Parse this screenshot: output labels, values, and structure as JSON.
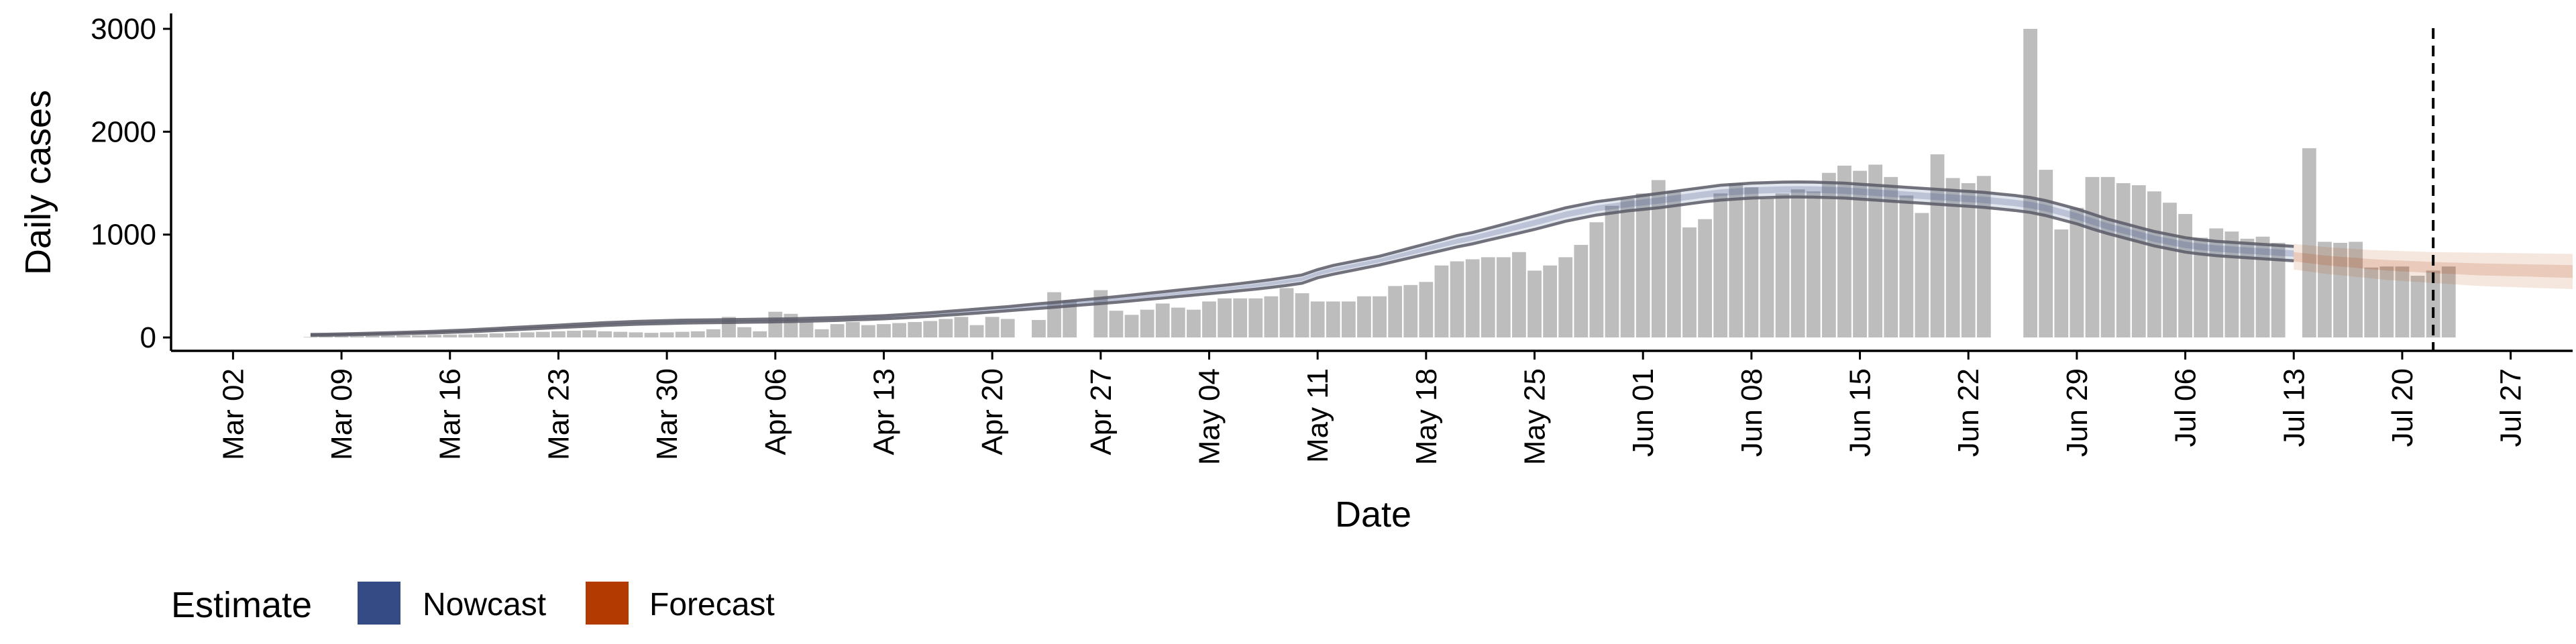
{
  "legend": {
    "title": "Estimate",
    "items": [
      {
        "label": "Nowcast",
        "color": "#354b86"
      },
      {
        "label": "Forecast",
        "color": "#b33a00"
      }
    ]
  },
  "chart_data": {
    "type": "bar",
    "title": "",
    "xlabel": "Date",
    "ylabel": "Daily cases",
    "ylim": [
      -130,
      3150
    ],
    "xlim": [
      "2020-02-27",
      "2020-07-31"
    ],
    "x_start_date": "2020-03-07",
    "y_ticks": [
      0,
      1000,
      2000,
      3000
    ],
    "x_ticks": [
      {
        "date": "2020-03-02",
        "label": "Mar 02"
      },
      {
        "date": "2020-03-09",
        "label": "Mar 09"
      },
      {
        "date": "2020-03-16",
        "label": "Mar 16"
      },
      {
        "date": "2020-03-23",
        "label": "Mar 23"
      },
      {
        "date": "2020-03-30",
        "label": "Mar 30"
      },
      {
        "date": "2020-04-06",
        "label": "Apr 06"
      },
      {
        "date": "2020-04-13",
        "label": "Apr 13"
      },
      {
        "date": "2020-04-20",
        "label": "Apr 20"
      },
      {
        "date": "2020-04-27",
        "label": "Apr 27"
      },
      {
        "date": "2020-05-04",
        "label": "May 04"
      },
      {
        "date": "2020-05-11",
        "label": "May 11"
      },
      {
        "date": "2020-05-18",
        "label": "May 18"
      },
      {
        "date": "2020-05-25",
        "label": "May 25"
      },
      {
        "date": "2020-06-01",
        "label": "Jun 01"
      },
      {
        "date": "2020-06-08",
        "label": "Jun 08"
      },
      {
        "date": "2020-06-15",
        "label": "Jun 15"
      },
      {
        "date": "2020-06-22",
        "label": "Jun 22"
      },
      {
        "date": "2020-06-29",
        "label": "Jun 29"
      },
      {
        "date": "2020-07-06",
        "label": "Jul 06"
      },
      {
        "date": "2020-07-13",
        "label": "Jul 13"
      },
      {
        "date": "2020-07-20",
        "label": "Jul 20"
      },
      {
        "date": "2020-07-27",
        "label": "Jul 27"
      }
    ],
    "vline_date": "2020-07-22",
    "daily_cases": [
      5,
      8,
      10,
      12,
      15,
      18,
      20,
      22,
      25,
      28,
      30,
      35,
      40,
      45,
      50,
      55,
      60,
      65,
      70,
      60,
      55,
      50,
      45,
      50,
      55,
      60,
      80,
      200,
      100,
      60,
      250,
      230,
      150,
      80,
      130,
      150,
      120,
      130,
      140,
      150,
      160,
      180,
      200,
      120,
      200,
      180,
      0,
      170,
      440,
      360,
      0,
      460,
      260,
      220,
      270,
      330,
      290,
      270,
      350,
      380,
      380,
      380,
      400,
      480,
      430,
      350,
      350,
      350,
      400,
      400,
      500,
      510,
      540,
      700,
      740,
      760,
      780,
      780,
      830,
      650,
      700,
      780,
      900,
      1120,
      1280,
      1350,
      1400,
      1530,
      1420,
      1070,
      1150,
      1400,
      1500,
      1460,
      1350,
      1400,
      1440,
      1420,
      1600,
      1670,
      1620,
      1680,
      1560,
      1380,
      1210,
      1780,
      1550,
      1500,
      1570,
      0,
      0,
      3000,
      1630,
      1050,
      1260,
      1560,
      1560,
      1500,
      1480,
      1420,
      1310,
      1200,
      970,
      1060,
      1030,
      960,
      980,
      920,
      0,
      1840,
      930,
      920,
      930,
      680,
      690,
      690,
      600,
      650,
      690
    ],
    "nowcast": {
      "end_date": "2020-07-12",
      "upper": [
        30,
        32,
        35,
        38,
        42,
        46,
        50,
        55,
        60,
        66,
        72,
        80,
        88,
        96,
        104,
        112,
        120,
        128,
        136,
        144,
        150,
        156,
        160,
        164,
        168,
        170,
        172,
        174,
        176,
        178,
        180,
        182,
        186,
        190,
        195,
        200,
        206,
        212,
        220,
        230,
        240,
        252,
        264,
        276,
        288,
        300,
        314,
        328,
        340,
        354,
        368,
        382,
        396,
        412,
        428,
        444,
        460,
        476,
        492,
        508,
        524,
        542,
        562,
        584,
        608,
        660,
        700,
        730,
        760,
        790,
        830,
        870,
        910,
        950,
        990,
        1020,
        1060,
        1100,
        1140,
        1180,
        1220,
        1260,
        1290,
        1320,
        1340,
        1360,
        1380,
        1400,
        1420,
        1440,
        1460,
        1480,
        1490,
        1500,
        1505,
        1510,
        1512,
        1510,
        1505,
        1500,
        1490,
        1480,
        1470,
        1460,
        1450,
        1440,
        1430,
        1420,
        1410,
        1395,
        1380,
        1360,
        1330,
        1290,
        1250,
        1200,
        1150,
        1110,
        1070,
        1030,
        1000,
        970,
        950,
        935,
        925,
        915,
        905,
        895,
        885
      ],
      "lower": [
        20,
        22,
        24,
        27,
        30,
        33,
        37,
        41,
        45,
        50,
        55,
        61,
        68,
        75,
        82,
        89,
        96,
        103,
        110,
        117,
        123,
        128,
        132,
        136,
        140,
        142,
        144,
        146,
        148,
        150,
        152,
        154,
        158,
        162,
        166,
        171,
        176,
        182,
        189,
        197,
        206,
        216,
        226,
        237,
        248,
        259,
        271,
        283,
        294,
        306,
        318,
        330,
        342,
        356,
        370,
        384,
        398,
        412,
        426,
        440,
        455,
        470,
        487,
        506,
        527,
        580,
        615,
        645,
        675,
        705,
        740,
        775,
        810,
        845,
        880,
        910,
        945,
        980,
        1015,
        1050,
        1090,
        1130,
        1160,
        1190,
        1210,
        1230,
        1245,
        1260,
        1280,
        1300,
        1320,
        1335,
        1345,
        1355,
        1360,
        1365,
        1366,
        1364,
        1360,
        1355,
        1345,
        1335,
        1325,
        1315,
        1305,
        1295,
        1285,
        1275,
        1265,
        1250,
        1235,
        1215,
        1185,
        1145,
        1105,
        1055,
        1010,
        970,
        930,
        890,
        860,
        830,
        810,
        795,
        785,
        775,
        765,
        755,
        745
      ]
    },
    "forecast": {
      "start_date": "2020-07-13",
      "upper": [
        910,
        895,
        880,
        870,
        860,
        850,
        845,
        840,
        835,
        830,
        828,
        826,
        824,
        822,
        820,
        818,
        816,
        814,
        812
      ],
      "lower": [
        660,
        640,
        620,
        605,
        590,
        575,
        560,
        550,
        540,
        530,
        520,
        510,
        500,
        495,
        490,
        485,
        480,
        475,
        470
      ]
    },
    "colors": {
      "bars": "#bdbdbd",
      "nowcast_band": "#354b86",
      "nowcast_edge": "#5a5a66",
      "forecast_band": "#b33a00",
      "vline": "#000000"
    }
  }
}
